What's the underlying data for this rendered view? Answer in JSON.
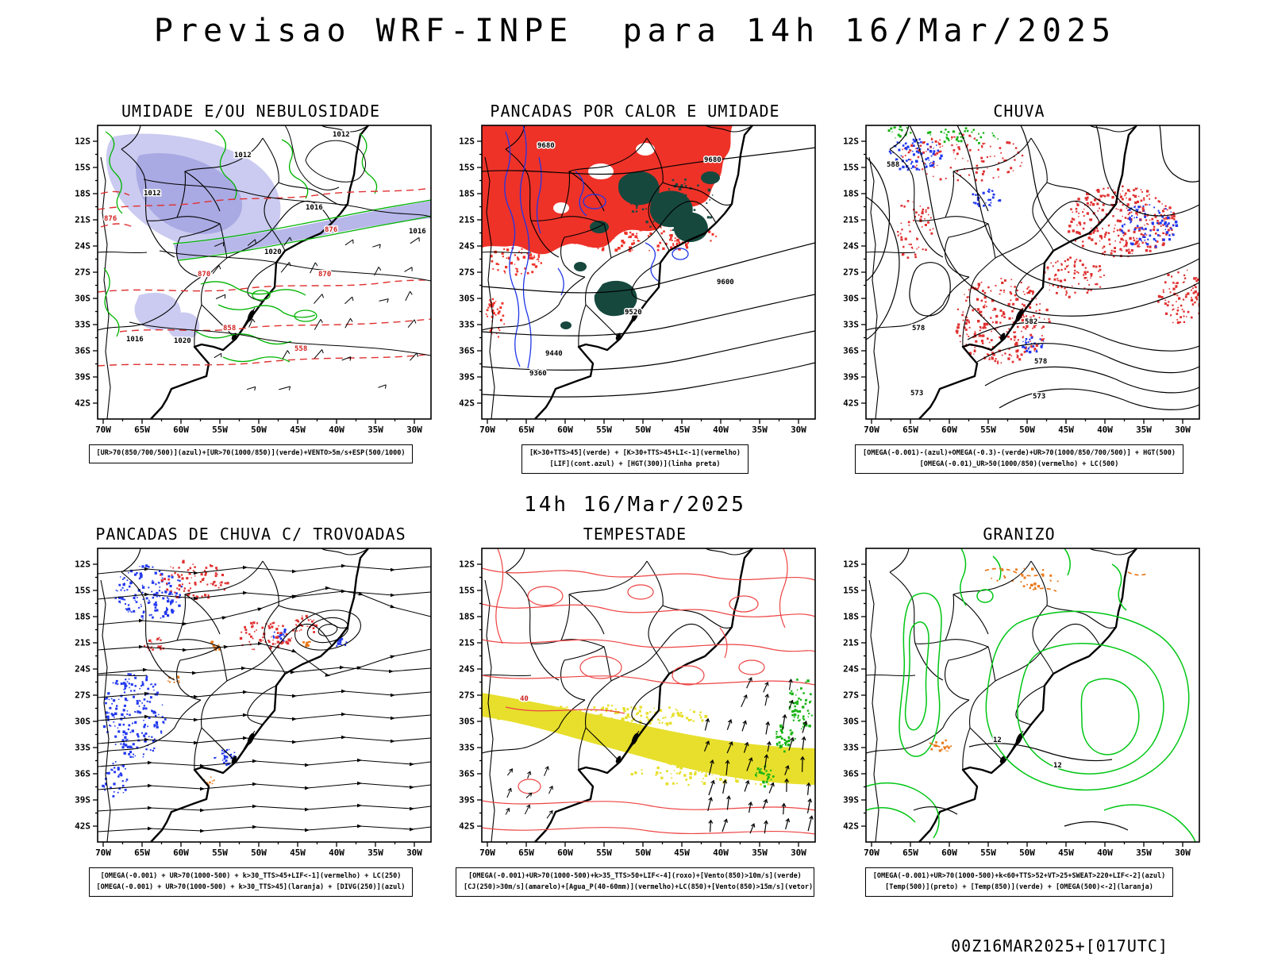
{
  "header": {
    "title": "Previsao WRF-INPE  para 14h 16/Mar/2025"
  },
  "subtitle": "14h 16/Mar/2025",
  "footer": "00Z16MAR2025+[017UTC]",
  "axes": {
    "lat": [
      "12S",
      "15S",
      "18S",
      "21S",
      "24S",
      "27S",
      "30S",
      "33S",
      "36S",
      "39S",
      "42S"
    ],
    "lon": [
      "70W",
      "65W",
      "60W",
      "55W",
      "50W",
      "45W",
      "40W",
      "35W",
      "30W"
    ]
  },
  "colors": {
    "red_fill": "#ee3228",
    "teal_fill": "#16483e",
    "lavender_fill": "#b9b9ea",
    "green_contour": "#00b400",
    "blue_contour": "#2036e8",
    "red_contour": "#e03030",
    "yellow_band": "#e7df2b",
    "orange": "#e87818"
  },
  "panels": [
    {
      "title": "UMIDADE E/OU NEBULOSIDADE",
      "caption_lines": [
        "[UR>70(850/700/500)](azul)+[UR>70(1000/850)](verde)+VENTO>5m/s+ESP(500/1000)"
      ],
      "contour_labels": [
        "1012",
        "1012",
        "1012",
        "1016",
        "1016",
        "1016",
        "1020",
        "1020",
        "876",
        "876",
        "870",
        "870",
        "858",
        "558"
      ]
    },
    {
      "title": "PANCADAS POR CALOR E UMIDADE",
      "caption_lines": [
        "[K>30+TTS>45](verde) + [K>30+TTS>45+LI<-1](vermelho)",
        "[LIF](cont.azul) + [HGT(300)](linha preta)"
      ],
      "contour_labels": [
        "9680",
        "9680",
        "9600",
        "9520",
        "9440",
        "9360"
      ]
    },
    {
      "title": "CHUVA",
      "caption_lines": [
        "[OMEGA(-0.001)-(azul)+OMEGA(-0.3)-(verde)+UR>70(1000/850/700/500)] + HGT(500)",
        "[OMEGA(-0.01)_UR>50(1000/850)(vermelho) + LC(500)"
      ],
      "contour_labels": [
        "588",
        "582",
        "578",
        "578",
        "573",
        "573"
      ]
    },
    {
      "title": "PANCADAS DE CHUVA C/ TROVOADAS",
      "caption_lines": [
        "[OMEGA(-0.001) + UR>70(1000-500) + k>30_TTS>45+LIF<-1](vermelho) + LC(250)",
        "[OMEGA(-0.001) + UR>70(1000-500) + k>30_TTS>45](laranja) + [DIVG(250)](azul)"
      ],
      "contour_labels": []
    },
    {
      "title": "TEMPESTADE",
      "caption_lines": [
        "[OMEGA(-0.001)+UR>70(1000-500)+k>35_TTS>50+LIF<-4](roxo)+[Vento(850)>10m/s](verde)",
        "[CJ(250)>30m/s](amarelo)+[Agua_P(40-60mm)](vermelho)+LC(850)+[Vento(850)>15m/s](vetor)"
      ],
      "contour_labels": [
        "40"
      ]
    },
    {
      "title": "GRANIZO",
      "caption_lines": [
        "[OMEGA(-0.001)+UR>70(1000-500)+k<60+TTS>52+VT>25+SWEAT>220+LIF<-2](azul)",
        "[Temp(500)](preto) + [Temp(850)](verde) + [OMEGA(500)<-2](laranja)"
      ],
      "contour_labels": [
        "12",
        "12"
      ]
    }
  ]
}
